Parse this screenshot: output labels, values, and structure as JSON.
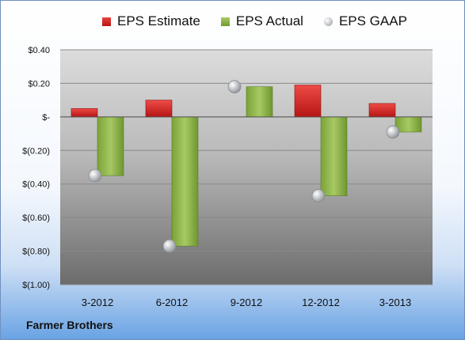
{
  "chart_data": {
    "type": "bar",
    "categories": [
      "3-2012",
      "6-2012",
      "9-2012",
      "12-2012",
      "3-2013"
    ],
    "series": [
      {
        "name": "EPS Estimate",
        "type": "bar",
        "color": "#d42a2a",
        "values": [
          0.05,
          0.1,
          0.0,
          0.19,
          0.08
        ]
      },
      {
        "name": "EPS Actual",
        "type": "bar",
        "color": "#8cb34a",
        "values": [
          -0.35,
          -0.77,
          0.18,
          -0.47,
          -0.09
        ]
      },
      {
        "name": "EPS GAAP",
        "type": "scatter",
        "color": "#b7b9bc",
        "values": [
          -0.35,
          -0.77,
          0.18,
          -0.47,
          -0.09
        ]
      }
    ],
    "ylim": [
      -1.0,
      0.4
    ],
    "yticks": [
      0.4,
      0.2,
      0.0,
      -0.2,
      -0.4,
      -0.6,
      -0.8,
      -1.0
    ],
    "ytick_labels": [
      "$0.40",
      "$0.20",
      "$-",
      "$(0.20)",
      "$(0.40)",
      "$(0.60)",
      "$(0.80)",
      "$(1.00)"
    ],
    "grid": true,
    "legend_position": "top"
  },
  "source_label": "Farmer Brothers"
}
